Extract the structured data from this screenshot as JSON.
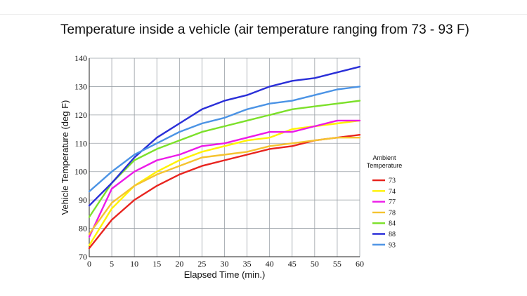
{
  "chart_data": {
    "type": "line",
    "title": "Temperature inside a vehicle (air temperature ranging from 73 - 93 F)",
    "xlabel": "Elapsed Time (min.)",
    "ylabel": "Vehicle Temperature (deg F)",
    "xlim": [
      0,
      60
    ],
    "ylim": [
      70,
      140
    ],
    "xticks": [
      0,
      5,
      10,
      15,
      20,
      25,
      30,
      35,
      40,
      45,
      50,
      55,
      60
    ],
    "yticks": [
      70,
      80,
      90,
      100,
      110,
      120,
      130,
      140
    ],
    "grid": true,
    "legend_position": "right",
    "legend_title": [
      "Ambient",
      "Temperature"
    ],
    "x": [
      0,
      5,
      10,
      15,
      20,
      25,
      30,
      35,
      40,
      45,
      50,
      55,
      60
    ],
    "series": [
      {
        "name": "73",
        "color": "#e8241f",
        "values": [
          73,
          83,
          90,
          95,
          99,
          102,
          104,
          106,
          108,
          109,
          111,
          112,
          113
        ]
      },
      {
        "name": "74",
        "color": "#fff200",
        "values": [
          74,
          87,
          95,
          100,
          104,
          107,
          109,
          111,
          112,
          115,
          116,
          117,
          118
        ]
      },
      {
        "name": "77",
        "color": "#ec1ae8",
        "values": [
          77,
          94,
          100,
          104,
          106,
          109,
          110,
          112,
          114,
          114,
          116,
          118,
          118
        ]
      },
      {
        "name": "78",
        "color": "#f5c330",
        "values": [
          78,
          89,
          95,
          99,
          102,
          105,
          106,
          107,
          109,
          110,
          111,
          112,
          112
        ]
      },
      {
        "name": "84",
        "color": "#7ce02a",
        "values": [
          84,
          96,
          104,
          108,
          111,
          114,
          116,
          118,
          120,
          122,
          123,
          124,
          125
        ]
      },
      {
        "name": "88",
        "color": "#2a2fd8",
        "values": [
          88,
          96,
          105,
          112,
          117,
          122,
          125,
          127,
          130,
          132,
          133,
          135,
          137
        ]
      },
      {
        "name": "93",
        "color": "#4b93e5",
        "values": [
          93,
          100,
          106,
          110,
          114,
          117,
          119,
          122,
          124,
          125,
          127,
          129,
          130
        ]
      }
    ]
  }
}
